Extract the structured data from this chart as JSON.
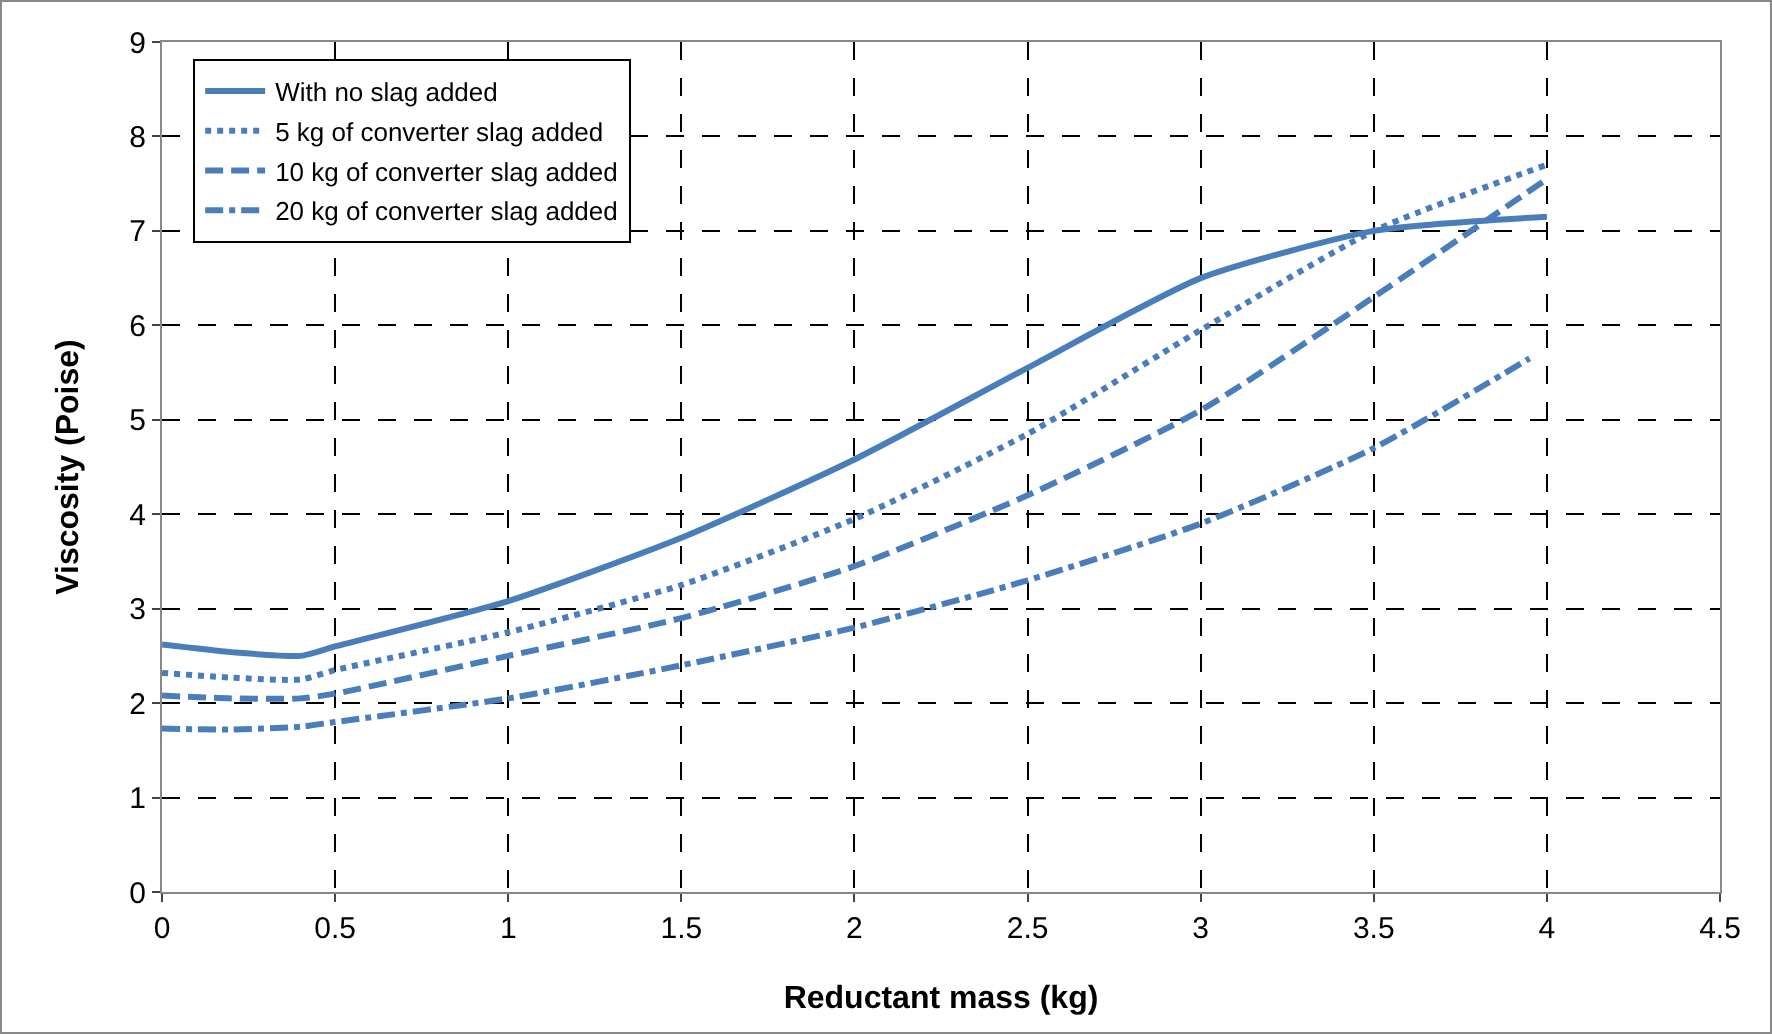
{
  "chart_data": {
    "type": "line",
    "xlabel": "Reductant mass (kg)",
    "ylabel": "Viscosity (Poise)",
    "xlim": [
      0,
      4.5
    ],
    "xticks": [
      0,
      0.5,
      1,
      1.5,
      2,
      2.5,
      3,
      3.5,
      4,
      4.5
    ],
    "ylim": [
      0,
      9
    ],
    "yticks": [
      0,
      1,
      2,
      3,
      4,
      5,
      6,
      7,
      8,
      9
    ],
    "grid": true,
    "legend": "top left",
    "marker": "none",
    "series": [
      {
        "name": "With no slag added",
        "color": "#4a7ebb",
        "line_style": "solid",
        "x": [
          0,
          0.2,
          0.4,
          0.5,
          1,
          1.5,
          2,
          2.5,
          3,
          3.5,
          4
        ],
        "values": [
          2.62,
          2.54,
          2.5,
          2.6,
          3.08,
          3.75,
          4.58,
          5.55,
          6.5,
          7.0,
          7.15
        ]
      },
      {
        "name": "5 kg of converter slag added",
        "color": "#4a7ebb",
        "line_style": "dotted",
        "x": [
          0,
          0.2,
          0.4,
          0.5,
          1,
          1.5,
          2,
          2.5,
          3,
          3.5,
          4
        ],
        "values": [
          2.32,
          2.27,
          2.25,
          2.35,
          2.75,
          3.25,
          3.95,
          4.85,
          5.95,
          7.0,
          7.7
        ]
      },
      {
        "name": "10 kg of converter slag added",
        "color": "#4a7ebb",
        "line_style": "dashed",
        "x": [
          0,
          0.2,
          0.4,
          0.5,
          1,
          1.5,
          2,
          2.5,
          3,
          3.5,
          4
        ],
        "values": [
          2.08,
          2.05,
          2.05,
          2.1,
          2.5,
          2.9,
          3.45,
          4.2,
          5.1,
          6.3,
          7.55
        ]
      },
      {
        "name": "20 kg of converter slag added",
        "color": "#4a7ebb",
        "line_style": "dashdot",
        "x": [
          0,
          0.2,
          0.4,
          0.5,
          1,
          1.5,
          2,
          2.5,
          3,
          3.5,
          3.95
        ],
        "values": [
          1.73,
          1.72,
          1.75,
          1.8,
          2.05,
          2.4,
          2.8,
          3.3,
          3.9,
          4.7,
          5.65
        ]
      }
    ]
  }
}
